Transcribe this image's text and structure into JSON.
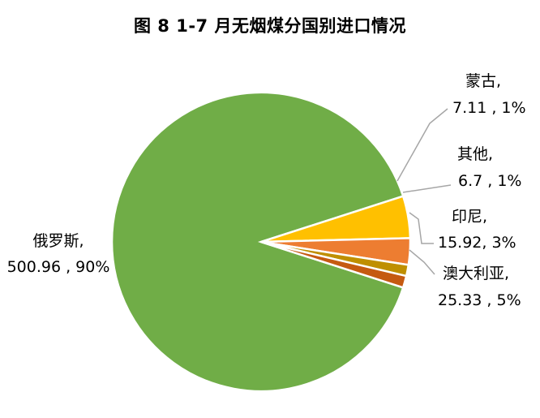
{
  "chart_data": {
    "type": "pie",
    "title": "图 8 1-7 月无烟煤分国别进口情况",
    "slices": [
      {
        "name": "俄罗斯",
        "value": 500.96,
        "percent": "90%",
        "color": "#70AD47",
        "value_text": "500.96 , 90%"
      },
      {
        "name": "澳大利亚",
        "value": 25.33,
        "percent": "5%",
        "color": "#FFC000",
        "value_text": "25.33 , 5%"
      },
      {
        "name": "印尼",
        "value": 15.92,
        "percent": "3%",
        "color": "#ED7D31",
        "value_text": "15.92, 3%"
      },
      {
        "name": "其他",
        "value": 6.7,
        "percent": "1%",
        "color": "#BF8F00",
        "value_text": "6.7 , 1%"
      },
      {
        "name": "蒙古",
        "value": 7.11,
        "percent": "1%",
        "color": "#C55A11",
        "value_text": "7.11 , 1%"
      }
    ],
    "legend": "none"
  }
}
